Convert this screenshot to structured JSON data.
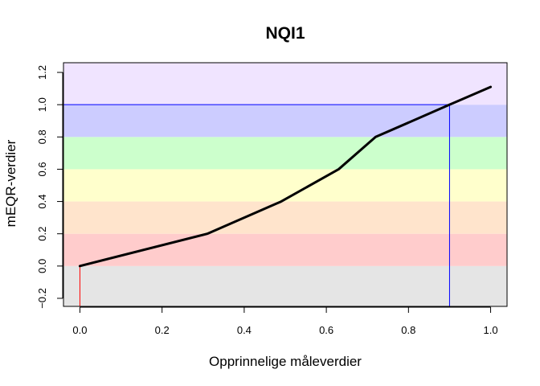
{
  "chart_data": {
    "type": "line",
    "title": "NQI1",
    "xlabel": "Opprinnelige måleverdier",
    "ylabel": "mEQR-verdier",
    "xlim": [
      -0.04,
      1.04
    ],
    "ylim": [
      -0.25,
      1.26
    ],
    "x_ticks": [
      0.0,
      0.2,
      0.4,
      0.6,
      0.8,
      1.0
    ],
    "x_tick_labels": [
      "0.0",
      "0.2",
      "0.4",
      "0.6",
      "0.8",
      "1.0"
    ],
    "y_ticks": [
      -0.2,
      0.0,
      0.2,
      0.4,
      0.6,
      0.8,
      1.0,
      1.2
    ],
    "y_tick_labels": [
      "−0.2",
      "0.0",
      "0.2",
      "0.4",
      "0.6",
      "0.8",
      "1.0",
      "1.2"
    ],
    "bands": [
      {
        "from": -0.25,
        "to": 0.0,
        "color": "#e5e5e5"
      },
      {
        "from": 0.0,
        "to": 0.2,
        "color": "#ffcccc"
      },
      {
        "from": 0.2,
        "to": 0.4,
        "color": "#ffe4cc"
      },
      {
        "from": 0.4,
        "to": 0.6,
        "color": "#ffffcc"
      },
      {
        "from": 0.6,
        "to": 0.8,
        "color": "#ccffcc"
      },
      {
        "from": 0.8,
        "to": 1.0,
        "color": "#ccccff"
      },
      {
        "from": 1.0,
        "to": 1.26,
        "color": "#f0e4ff"
      }
    ],
    "series": [
      {
        "x": [
          0.0,
          0.31,
          0.49,
          0.63,
          0.72,
          0.9,
          1.0
        ],
        "y": [
          0.0,
          0.2,
          0.4,
          0.6,
          0.8,
          1.0,
          1.11
        ],
        "color": "#000000"
      }
    ],
    "reference_lines": [
      {
        "orientation": "vertical",
        "x": 0.0,
        "y_from": -0.25,
        "y_to": 0.0,
        "color": "#ff0000"
      },
      {
        "orientation": "vertical",
        "x": 0.9,
        "y_from": -0.25,
        "y_to": 1.0,
        "color": "#0000ff"
      },
      {
        "orientation": "horizontal",
        "y": 1.0,
        "x_from": -0.04,
        "x_to": 0.9,
        "color": "#0000ff"
      }
    ]
  }
}
